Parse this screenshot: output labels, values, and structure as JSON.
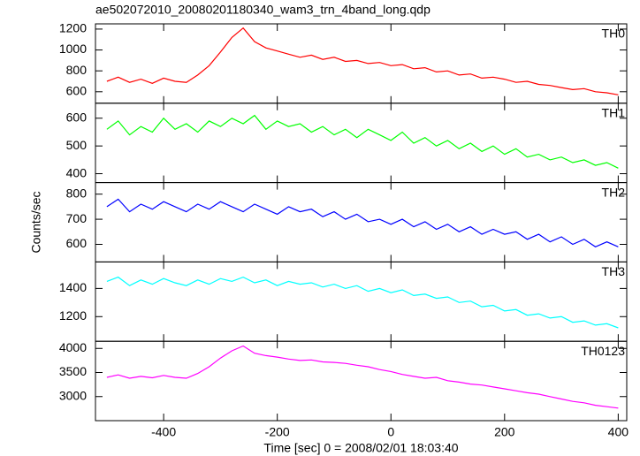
{
  "chart_data": [
    {
      "type": "line",
      "title": "ae502072010_20080201180340_wam3_trn_4band_long.qdp",
      "x": [
        -500,
        -480,
        -460,
        -440,
        -420,
        -400,
        -380,
        -360,
        -340,
        -320,
        -300,
        -280,
        -260,
        -240,
        -220,
        -200,
        -180,
        -160,
        -140,
        -120,
        -100,
        -80,
        -60,
        -40,
        -20,
        0,
        20,
        40,
        60,
        80,
        100,
        120,
        140,
        160,
        180,
        200,
        220,
        240,
        260,
        280,
        300,
        320,
        340,
        360,
        380,
        400
      ],
      "series": [
        {
          "name": "TH0",
          "color": "#ff0000",
          "values": [
            700,
            740,
            690,
            720,
            680,
            730,
            700,
            690,
            760,
            850,
            980,
            1120,
            1210,
            1080,
            1020,
            990,
            960,
            930,
            950,
            910,
            930,
            890,
            900,
            870,
            880,
            850,
            860,
            820,
            830,
            790,
            800,
            760,
            770,
            730,
            740,
            720,
            690,
            700,
            670,
            660,
            640,
            620,
            630,
            600,
            590,
            570
          ]
        }
      ],
      "xlim": [
        -520,
        415
      ],
      "xticks": [
        -400,
        -200,
        0,
        200,
        400
      ],
      "ylim": [
        490,
        1250
      ],
      "yticks": [
        600,
        800,
        1000,
        1200
      ]
    },
    {
      "type": "line",
      "x": [
        -500,
        -480,
        -460,
        -440,
        -420,
        -400,
        -380,
        -360,
        -340,
        -320,
        -300,
        -280,
        -260,
        -240,
        -220,
        -200,
        -180,
        -160,
        -140,
        -120,
        -100,
        -80,
        -60,
        -40,
        -20,
        0,
        20,
        40,
        60,
        80,
        100,
        120,
        140,
        160,
        180,
        200,
        220,
        240,
        260,
        280,
        300,
        320,
        340,
        360,
        380,
        400
      ],
      "series": [
        {
          "name": "TH1",
          "color": "#00ff00",
          "values": [
            560,
            590,
            540,
            570,
            550,
            600,
            560,
            580,
            550,
            590,
            570,
            600,
            580,
            610,
            560,
            590,
            570,
            580,
            550,
            570,
            540,
            560,
            530,
            560,
            540,
            520,
            550,
            510,
            530,
            500,
            520,
            490,
            510,
            480,
            500,
            470,
            490,
            460,
            470,
            450,
            460,
            440,
            450,
            430,
            440,
            420
          ]
        }
      ],
      "xlim": [
        -520,
        415
      ],
      "xticks": [
        -400,
        -200,
        0,
        200,
        400
      ],
      "ylim": [
        368,
        654
      ],
      "yticks": [
        400,
        500,
        600
      ]
    },
    {
      "type": "line",
      "ylabel": "Counts/sec",
      "x": [
        -500,
        -480,
        -460,
        -440,
        -420,
        -400,
        -380,
        -360,
        -340,
        -320,
        -300,
        -280,
        -260,
        -240,
        -220,
        -200,
        -180,
        -160,
        -140,
        -120,
        -100,
        -80,
        -60,
        -40,
        -20,
        0,
        20,
        40,
        60,
        80,
        100,
        120,
        140,
        160,
        180,
        200,
        220,
        240,
        260,
        280,
        300,
        320,
        340,
        360,
        380,
        400
      ],
      "series": [
        {
          "name": "TH2",
          "color": "#0000ff",
          "values": [
            750,
            780,
            730,
            760,
            740,
            770,
            750,
            730,
            760,
            740,
            770,
            750,
            730,
            760,
            740,
            720,
            750,
            730,
            740,
            710,
            730,
            700,
            720,
            690,
            700,
            680,
            700,
            670,
            690,
            660,
            680,
            650,
            670,
            640,
            660,
            640,
            650,
            620,
            640,
            610,
            630,
            600,
            620,
            590,
            610,
            590
          ]
        }
      ],
      "xlim": [
        -520,
        415
      ],
      "xticks": [
        -400,
        -200,
        0,
        200,
        400
      ],
      "ylim": [
        530,
        846
      ],
      "yticks": [
        600,
        700,
        800
      ]
    },
    {
      "type": "line",
      "x": [
        -500,
        -480,
        -460,
        -440,
        -420,
        -400,
        -380,
        -360,
        -340,
        -320,
        -300,
        -280,
        -260,
        -240,
        -220,
        -200,
        -180,
        -160,
        -140,
        -120,
        -100,
        -80,
        -60,
        -40,
        -20,
        0,
        20,
        40,
        60,
        80,
        100,
        120,
        140,
        160,
        180,
        200,
        220,
        240,
        260,
        280,
        300,
        320,
        340,
        360,
        380,
        400
      ],
      "series": [
        {
          "name": "TH3",
          "color": "#00ffff",
          "values": [
            1450,
            1480,
            1420,
            1460,
            1430,
            1470,
            1440,
            1420,
            1460,
            1430,
            1470,
            1450,
            1480,
            1440,
            1460,
            1420,
            1450,
            1430,
            1440,
            1410,
            1430,
            1400,
            1420,
            1380,
            1400,
            1370,
            1390,
            1350,
            1360,
            1330,
            1340,
            1300,
            1310,
            1270,
            1280,
            1240,
            1250,
            1210,
            1220,
            1190,
            1200,
            1160,
            1170,
            1140,
            1150,
            1120
          ]
        }
      ],
      "xlim": [
        -520,
        415
      ],
      "xticks": [
        -400,
        -200,
        0,
        200,
        400
      ],
      "ylim": [
        1025,
        1588
      ],
      "yticks": [
        1200,
        1400
      ]
    },
    {
      "type": "line",
      "xlabel": "Time [sec] 0 = 2008/02/01 18:03:40",
      "x": [
        -500,
        -480,
        -460,
        -440,
        -420,
        -400,
        -380,
        -360,
        -340,
        -320,
        -300,
        -280,
        -260,
        -240,
        -220,
        -200,
        -180,
        -160,
        -140,
        -120,
        -100,
        -80,
        -60,
        -40,
        -20,
        0,
        20,
        40,
        60,
        80,
        100,
        120,
        140,
        160,
        180,
        200,
        220,
        240,
        260,
        280,
        300,
        320,
        340,
        360,
        380,
        400
      ],
      "series": [
        {
          "name": "TH0123",
          "color": "#ff00ff",
          "values": [
            3400,
            3450,
            3380,
            3420,
            3390,
            3440,
            3400,
            3380,
            3480,
            3620,
            3800,
            3950,
            4050,
            3900,
            3850,
            3820,
            3780,
            3750,
            3760,
            3720,
            3710,
            3690,
            3650,
            3620,
            3560,
            3520,
            3460,
            3420,
            3380,
            3400,
            3330,
            3300,
            3260,
            3240,
            3200,
            3160,
            3120,
            3080,
            3050,
            3000,
            2950,
            2900,
            2870,
            2820,
            2790,
            2760
          ]
        }
      ],
      "xlim": [
        -520,
        415
      ],
      "xticks": [
        -400,
        -200,
        0,
        200,
        400
      ],
      "ylim": [
        2500,
        4148
      ],
      "yticks": [
        3000,
        3500,
        4000
      ]
    }
  ]
}
